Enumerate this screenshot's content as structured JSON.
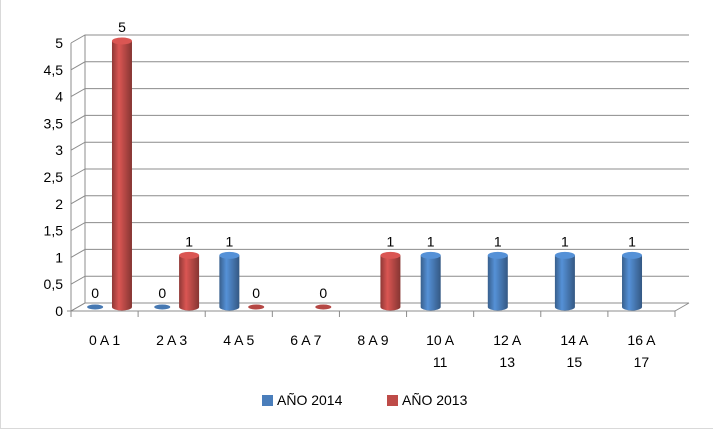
{
  "chart_data": {
    "type": "bar",
    "categories": [
      [
        "0 A 1"
      ],
      [
        "2 A 3"
      ],
      [
        "4 A 5"
      ],
      [
        "6 A 7"
      ],
      [
        "8 A 9"
      ],
      [
        "10 A",
        "11"
      ],
      [
        "12 A",
        "13"
      ],
      [
        "14 A",
        "15"
      ],
      [
        "16 A",
        "17"
      ]
    ],
    "series": [
      {
        "name": "AÑO 2014",
        "color": "#4a7ebb",
        "values": [
          0,
          0,
          1,
          null,
          null,
          1,
          1,
          1,
          1
        ]
      },
      {
        "name": "AÑO 2013",
        "color": "#be4b48",
        "values": [
          5,
          1,
          0,
          0,
          1,
          null,
          null,
          null,
          null
        ]
      }
    ],
    "ylim": [
      0,
      5
    ],
    "yticks": [
      "0",
      "0,5",
      "1",
      "1,5",
      "2",
      "2,5",
      "3",
      "3,5",
      "4",
      "4,5",
      "5"
    ],
    "grid": true,
    "legend_position": "bottom"
  }
}
